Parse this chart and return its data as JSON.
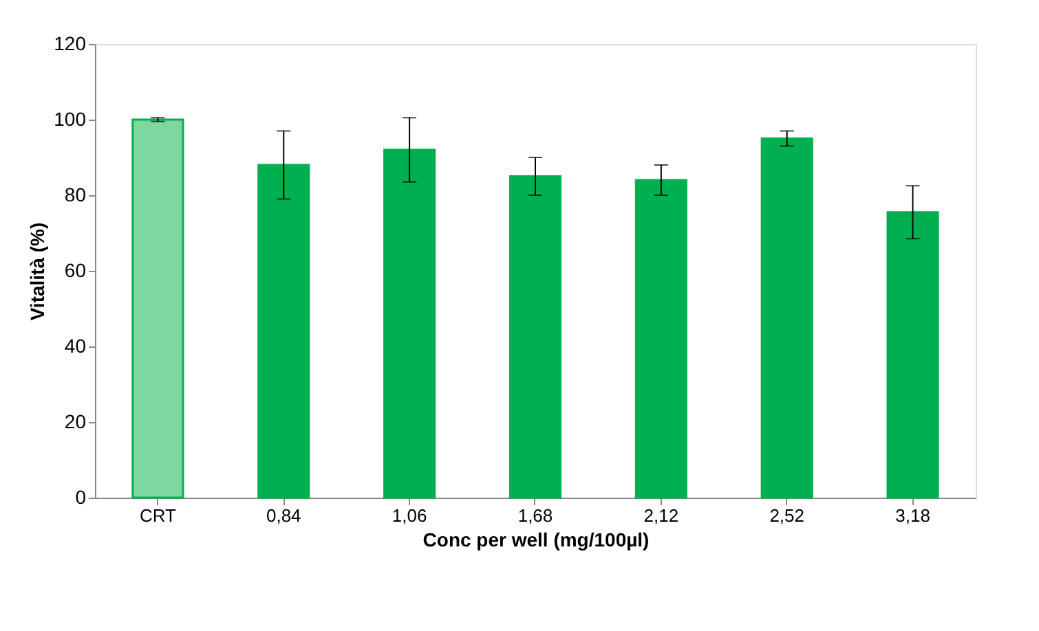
{
  "chart_data": {
    "type": "bar",
    "xlabel": "Conc per well (mg/100µl)",
    "ylabel": "Vitalità (%)",
    "categories": [
      "CRT",
      "0,84",
      "1,06",
      "1,68",
      "2,12",
      "2,52",
      "3,18"
    ],
    "values": [
      100,
      88,
      92,
      85,
      84,
      95,
      75.5
    ],
    "errors": [
      0.5,
      9,
      8.5,
      5,
      4,
      2,
      7
    ],
    "colors": [
      "#7fd7a0",
      "#00b050",
      "#00b050",
      "#00b050",
      "#00b050",
      "#00b050",
      "#00b050"
    ],
    "ylim": [
      0,
      120
    ],
    "yticks": [
      0,
      20,
      40,
      60,
      80,
      100,
      120
    ],
    "grid": false
  }
}
